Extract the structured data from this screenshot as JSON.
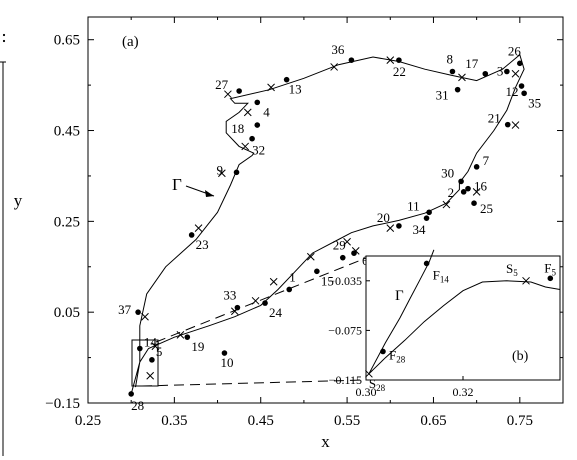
{
  "chart_data": {
    "type": "scatter",
    "panel_label": "(a)",
    "xlabel": "x",
    "ylabel": "y",
    "xlim": [
      0.25,
      0.8
    ],
    "ylim": [
      -0.15,
      0.7
    ],
    "x_ticks": [
      0.25,
      0.35,
      0.45,
      0.55,
      0.65,
      0.75
    ],
    "x_tick_labels": [
      "0.25",
      "0.35",
      "0.45",
      "0.55",
      "0.65",
      "0.75"
    ],
    "y_ticks": [
      -0.15,
      0.05,
      0.25,
      0.45,
      0.65
    ],
    "y_tick_labels": [
      "−0.15",
      "0.05",
      "0.25",
      "0.45",
      "0.65"
    ],
    "curve_label": "Γ",
    "curve": [
      [
        0.305,
        -0.115
      ],
      [
        0.31,
        -0.06
      ],
      [
        0.31,
        0.02
      ],
      [
        0.318,
        0.09
      ],
      [
        0.34,
        0.15
      ],
      [
        0.375,
        0.21
      ],
      [
        0.4,
        0.27
      ],
      [
        0.415,
        0.33
      ],
      [
        0.425,
        0.375
      ],
      [
        0.44,
        0.395
      ],
      [
        0.442,
        0.4
      ],
      [
        0.425,
        0.415
      ],
      [
        0.41,
        0.445
      ],
      [
        0.41,
        0.47
      ],
      [
        0.425,
        0.49
      ],
      [
        0.435,
        0.51
      ],
      [
        0.42,
        0.51
      ],
      [
        0.415,
        0.52
      ],
      [
        0.46,
        0.54
      ],
      [
        0.5,
        0.565
      ],
      [
        0.54,
        0.595
      ],
      [
        0.58,
        0.612
      ],
      [
        0.61,
        0.602
      ],
      [
        0.64,
        0.585
      ],
      [
        0.67,
        0.572
      ],
      [
        0.7,
        0.56
      ],
      [
        0.73,
        0.585
      ],
      [
        0.75,
        0.617
      ],
      [
        0.755,
        0.585
      ],
      [
        0.745,
        0.545
      ],
      [
        0.735,
        0.495
      ],
      [
        0.72,
        0.45
      ],
      [
        0.7,
        0.4
      ],
      [
        0.69,
        0.36
      ],
      [
        0.68,
        0.335
      ],
      [
        0.68,
        0.32
      ],
      [
        0.665,
        0.29
      ],
      [
        0.64,
        0.268
      ],
      [
        0.61,
        0.252
      ],
      [
        0.58,
        0.24
      ],
      [
        0.555,
        0.225
      ],
      [
        0.54,
        0.21
      ],
      [
        0.51,
        0.18
      ],
      [
        0.49,
        0.14
      ],
      [
        0.47,
        0.1
      ],
      [
        0.45,
        0.065
      ],
      [
        0.42,
        0.04
      ],
      [
        0.39,
        0.02
      ],
      [
        0.35,
        -0.005
      ],
      [
        0.32,
        -0.03
      ],
      [
        0.31,
        -0.06
      ],
      [
        0.3,
        -0.13
      ]
    ],
    "points": [
      {
        "label": "1",
        "x": 0.483,
        "y": 0.1
      },
      {
        "label": "2",
        "x": 0.685,
        "y": 0.315
      },
      {
        "label": "3",
        "x": 0.735,
        "y": 0.58
      },
      {
        "label": "4",
        "x": 0.446,
        "y": 0.512
      },
      {
        "label": "5",
        "x": 0.324,
        "y": -0.055
      },
      {
        "label": "6",
        "x": 0.558,
        "y": 0.18
      },
      {
        "label": "7",
        "x": 0.7,
        "y": 0.37
      },
      {
        "label": "8",
        "x": 0.672,
        "y": 0.58
      },
      {
        "label": "9",
        "x": 0.422,
        "y": 0.358
      },
      {
        "label": "10",
        "x": 0.408,
        "y": -0.04
      },
      {
        "label": "11",
        "x": 0.645,
        "y": 0.27
      },
      {
        "label": "12",
        "x": 0.752,
        "y": 0.548
      },
      {
        "label": "13",
        "x": 0.48,
        "y": 0.562
      },
      {
        "label": "14",
        "x": 0.31,
        "y": -0.03
      },
      {
        "label": "15",
        "x": 0.515,
        "y": 0.14
      },
      {
        "label": "16",
        "x": 0.69,
        "y": 0.322
      },
      {
        "label": "17",
        "x": 0.71,
        "y": 0.575
      },
      {
        "label": "18",
        "x": 0.446,
        "y": 0.462
      },
      {
        "label": "19",
        "x": 0.365,
        "y": -0.005
      },
      {
        "label": "20",
        "x": 0.61,
        "y": 0.24
      },
      {
        "label": "21",
        "x": 0.736,
        "y": 0.463
      },
      {
        "label": "22",
        "x": 0.61,
        "y": 0.605
      },
      {
        "label": "23",
        "x": 0.37,
        "y": 0.22
      },
      {
        "label": "24",
        "x": 0.455,
        "y": 0.07
      },
      {
        "label": "25",
        "x": 0.697,
        "y": 0.29
      },
      {
        "label": "26",
        "x": 0.75,
        "y": 0.598
      },
      {
        "label": "27",
        "x": 0.425,
        "y": 0.537
      },
      {
        "label": "28",
        "x": 0.3,
        "y": -0.13
      },
      {
        "label": "29",
        "x": 0.545,
        "y": 0.17
      },
      {
        "label": "30",
        "x": 0.682,
        "y": 0.338
      },
      {
        "label": "31",
        "x": 0.678,
        "y": 0.54
      },
      {
        "label": "32",
        "x": 0.44,
        "y": 0.432
      },
      {
        "label": "33",
        "x": 0.423,
        "y": 0.06
      },
      {
        "label": "34",
        "x": 0.642,
        "y": 0.257
      },
      {
        "label": "35",
        "x": 0.755,
        "y": 0.532
      },
      {
        "label": "36",
        "x": 0.555,
        "y": 0.605
      },
      {
        "label": "37",
        "x": 0.308,
        "y": 0.05
      }
    ],
    "cross_markers": [
      [
        0.412,
        0.53
      ],
      [
        0.462,
        0.545
      ],
      [
        0.535,
        0.59
      ],
      [
        0.6,
        0.605
      ],
      [
        0.683,
        0.567
      ],
      [
        0.745,
        0.575
      ],
      [
        0.745,
        0.462
      ],
      [
        0.7,
        0.315
      ],
      [
        0.665,
        0.287
      ],
      [
        0.6,
        0.235
      ],
      [
        0.55,
        0.205
      ],
      [
        0.508,
        0.172
      ],
      [
        0.465,
        0.117
      ],
      [
        0.444,
        0.075
      ],
      [
        0.42,
        0.052
      ],
      [
        0.378,
        0.235
      ],
      [
        0.405,
        0.356
      ],
      [
        0.432,
        0.415
      ],
      [
        0.435,
        0.49
      ],
      [
        0.357,
        0.0
      ],
      [
        0.328,
        -0.025
      ],
      [
        0.322,
        -0.09
      ],
      [
        0.316,
        0.04
      ],
      [
        0.56,
        0.185
      ]
    ],
    "inset": {
      "panel_label": "(b)",
      "xlim": [
        0.3,
        0.34
      ],
      "ylim": [
        -0.115,
        -0.015
      ],
      "x_ticks": [
        0.3,
        0.32
      ],
      "x_tick_labels": [
        "0.30",
        "0.32"
      ],
      "y_ticks": [
        -0.115,
        -0.075,
        -0.035
      ],
      "y_tick_labels": [
        "−0.115",
        "−0.075",
        "−0.035"
      ],
      "curve_label": "Γ",
      "curves": [
        [
          [
            0.3006,
            -0.11
          ],
          [
            0.304,
            -0.085
          ],
          [
            0.307,
            -0.065
          ],
          [
            0.309,
            -0.05
          ],
          [
            0.311,
            -0.035
          ],
          [
            0.313,
            -0.02
          ],
          [
            0.314,
            -0.01
          ]
        ],
        [
          [
            0.3006,
            -0.11
          ],
          [
            0.304,
            -0.097
          ],
          [
            0.308,
            -0.083
          ],
          [
            0.312,
            -0.068
          ],
          [
            0.316,
            -0.055
          ],
          [
            0.32,
            -0.043
          ],
          [
            0.324,
            -0.036
          ],
          [
            0.329,
            -0.035
          ],
          [
            0.334,
            -0.036
          ],
          [
            0.337,
            -0.04
          ],
          [
            0.34,
            -0.042
          ]
        ]
      ],
      "points": [
        {
          "label": "F",
          "sub": "14",
          "x": 0.3125,
          "y": -0.021
        },
        {
          "label": "F",
          "sub": "5",
          "x": 0.338,
          "y": -0.033
        },
        {
          "label": "F",
          "sub": "28",
          "x": 0.3035,
          "y": -0.092
        }
      ],
      "cross_markers": [
        {
          "label": "S",
          "sub": "5",
          "x": 0.333,
          "y": -0.035
        },
        {
          "label": "S",
          "sub": "28",
          "x": 0.3006,
          "y": -0.11
        }
      ]
    }
  }
}
